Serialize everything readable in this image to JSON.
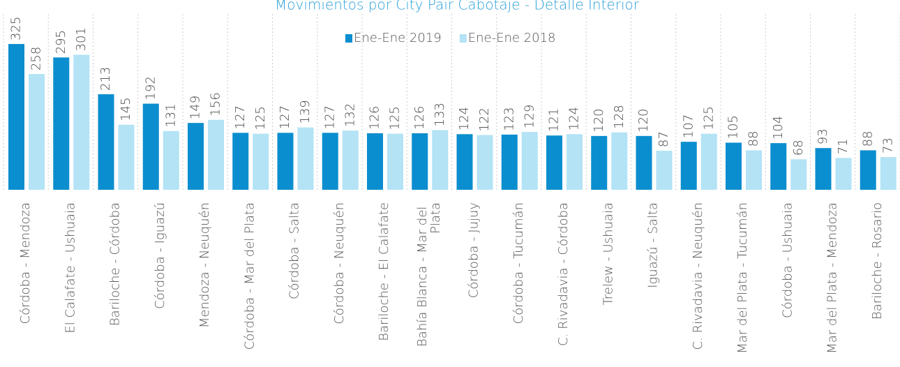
{
  "chart_data": {
    "type": "bar",
    "title": "Movimientos por City Pair Cabotaje - Detalle Interior",
    "categories": [
      "Córdoba - Mendoza",
      "El Calafate - Ushuaia",
      "Bariloche - Córdoba",
      "Córdoba - Iguazú",
      "Mendoza - Neuquén",
      "Córdoba - Mar del Plata",
      "Córdoba - Salta",
      "Córdoba - Neuquén",
      "Bariloche - El Calafate",
      "Bahía Blanca - Mar del Plata",
      "Córdoba - Jujuy",
      "Córdoba - Tucumán",
      "C. Rivadavia - Córdoba",
      "Trelew - Ushuaia",
      "Iguazú - Salta",
      "C. Rivadavia - Neuquén",
      "Mar del Plata - Tucumán",
      "Córdoba - Ushuaia",
      "Mar del Plata - Mendoza",
      "Bariloche - Rosario"
    ],
    "series": [
      {
        "name": "Ene-Ene 2019",
        "color": "#0b8ecf",
        "values": [
          325,
          295,
          213,
          192,
          149,
          127,
          127,
          127,
          126,
          126,
          124,
          123,
          121,
          120,
          120,
          107,
          105,
          104,
          93,
          88
        ]
      },
      {
        "name": "Ene-Ene 2018",
        "color": "#b3e3f5",
        "values": [
          258,
          301,
          145,
          131,
          156,
          125,
          139,
          132,
          125,
          133,
          122,
          129,
          124,
          128,
          87,
          125,
          88,
          68,
          71,
          73
        ]
      }
    ],
    "ylim": [
      0,
      420
    ]
  }
}
